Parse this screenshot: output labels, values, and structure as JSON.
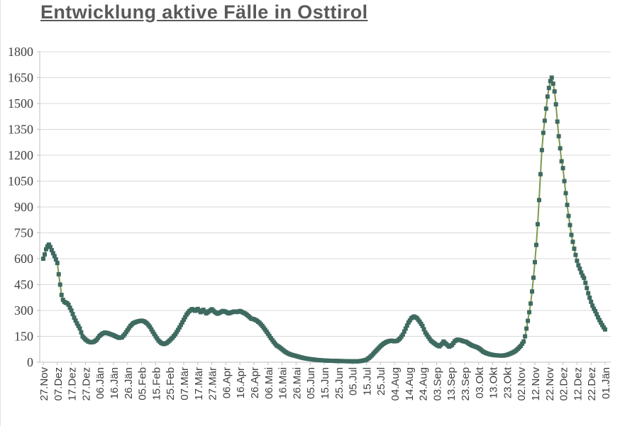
{
  "page": {
    "title": "Entwicklung aktive Fälle in Osttirol"
  },
  "chart_data": {
    "type": "line",
    "title": "Entwicklung aktive Fälle in Osttirol",
    "legend": "none",
    "grid": "horizontal",
    "marker": "square",
    "ylim": [
      0,
      1800
    ],
    "y_ticks": [
      0,
      150,
      300,
      450,
      600,
      750,
      900,
      1050,
      1200,
      1350,
      1500,
      1650,
      1800
    ],
    "x_tick_interval_days": 10,
    "x_range_days": [
      0,
      400
    ],
    "x_tick_labels": [
      "27.Nov",
      "07.Dez",
      "17.Dez",
      "27.Dez",
      "06.Jän",
      "16.Jän",
      "26.Jän",
      "05.Feb",
      "15.Feb",
      "25.Feb",
      "07.Mär",
      "17.Mär",
      "27.Mär",
      "06.Apr",
      "16.Apr",
      "26.Apr",
      "06.Mai",
      "16.Mai",
      "26.Mai",
      "05.Jun",
      "15.Jun",
      "25.Jun",
      "05.Jul",
      "15.Jul",
      "25.Jul",
      "04.Aug",
      "14.Aug",
      "24.Aug",
      "03.Sep",
      "13.Sep",
      "23.Sep",
      "03.Okt",
      "13.Okt",
      "23.Okt",
      "02.Nov",
      "12.Nov",
      "22.Nov",
      "02.Dez",
      "12.Dez",
      "22.Dez",
      "01.Jän"
    ],
    "colors": {
      "line": "#7C9A4E",
      "marker": "#3E6A60",
      "gridline": "#D9D9D9",
      "axis": "#BFBFBF",
      "title": "#595959",
      "tick_text": "#3F3F3F"
    },
    "series": [
      {
        "name": "aktive Fälle",
        "sampling": "anchor points [day,value] estimated from plot; daily points interpolated",
        "points_day_value": [
          [
            0,
            600
          ],
          [
            1,
            625
          ],
          [
            2,
            655
          ],
          [
            3,
            672
          ],
          [
            4,
            682
          ],
          [
            5,
            668
          ],
          [
            6,
            650
          ],
          [
            7,
            632
          ],
          [
            8,
            615
          ],
          [
            9,
            596
          ],
          [
            10,
            575
          ],
          [
            11,
            510
          ],
          [
            12,
            450
          ],
          [
            13,
            390
          ],
          [
            14,
            362
          ],
          [
            15,
            350
          ],
          [
            16,
            345
          ],
          [
            17,
            342
          ],
          [
            18,
            333
          ],
          [
            19,
            316
          ],
          [
            20,
            300
          ],
          [
            22,
            258
          ],
          [
            24,
            225
          ],
          [
            26,
            196
          ],
          [
            28,
            150
          ],
          [
            30,
            132
          ],
          [
            32,
            120
          ],
          [
            34,
            115
          ],
          [
            36,
            118
          ],
          [
            38,
            130
          ],
          [
            40,
            152
          ],
          [
            42,
            165
          ],
          [
            44,
            172
          ],
          [
            46,
            168
          ],
          [
            48,
            162
          ],
          [
            50,
            156
          ],
          [
            52,
            148
          ],
          [
            54,
            141
          ],
          [
            56,
            144
          ],
          [
            58,
            162
          ],
          [
            60,
            186
          ],
          [
            62,
            210
          ],
          [
            64,
            226
          ],
          [
            66,
            233
          ],
          [
            68,
            238
          ],
          [
            70,
            241
          ],
          [
            72,
            236
          ],
          [
            74,
            224
          ],
          [
            76,
            204
          ],
          [
            78,
            176
          ],
          [
            80,
            150
          ],
          [
            82,
            126
          ],
          [
            84,
            111
          ],
          [
            86,
            105
          ],
          [
            88,
            112
          ],
          [
            90,
            126
          ],
          [
            92,
            142
          ],
          [
            94,
            162
          ],
          [
            96,
            188
          ],
          [
            98,
            216
          ],
          [
            100,
            246
          ],
          [
            102,
            276
          ],
          [
            104,
            296
          ],
          [
            106,
            308
          ],
          [
            108,
            298
          ],
          [
            110,
            309
          ],
          [
            112,
            290
          ],
          [
            114,
            304
          ],
          [
            116,
            283
          ],
          [
            118,
            295
          ],
          [
            120,
            307
          ],
          [
            122,
            292
          ],
          [
            124,
            281
          ],
          [
            126,
            289
          ],
          [
            128,
            297
          ],
          [
            130,
            292
          ],
          [
            132,
            283
          ],
          [
            134,
            289
          ],
          [
            136,
            294
          ],
          [
            138,
            291
          ],
          [
            140,
            297
          ],
          [
            142,
            289
          ],
          [
            144,
            281
          ],
          [
            146,
            268
          ],
          [
            148,
            253
          ],
          [
            150,
            249
          ],
          [
            152,
            241
          ],
          [
            154,
            228
          ],
          [
            156,
            210
          ],
          [
            158,
            188
          ],
          [
            160,
            165
          ],
          [
            162,
            140
          ],
          [
            164,
            118
          ],
          [
            166,
            98
          ],
          [
            168,
            88
          ],
          [
            170,
            75
          ],
          [
            172,
            62
          ],
          [
            174,
            52
          ],
          [
            176,
            45
          ],
          [
            178,
            40
          ],
          [
            180,
            36
          ],
          [
            183,
            29
          ],
          [
            186,
            23
          ],
          [
            189,
            19
          ],
          [
            192,
            16
          ],
          [
            195,
            13
          ],
          [
            198,
            11
          ],
          [
            202,
            9
          ],
          [
            206,
            8
          ],
          [
            210,
            7
          ],
          [
            215,
            6
          ],
          [
            220,
            5
          ],
          [
            224,
            5
          ],
          [
            227,
            8
          ],
          [
            230,
            14
          ],
          [
            232,
            25
          ],
          [
            234,
            40
          ],
          [
            236,
            58
          ],
          [
            238,
            75
          ],
          [
            240,
            92
          ],
          [
            242,
            106
          ],
          [
            244,
            116
          ],
          [
            246,
            122
          ],
          [
            248,
            125
          ],
          [
            250,
            121
          ],
          [
            252,
            124
          ],
          [
            254,
            138
          ],
          [
            256,
            160
          ],
          [
            258,
            195
          ],
          [
            260,
            230
          ],
          [
            262,
            255
          ],
          [
            264,
            265
          ],
          [
            266,
            256
          ],
          [
            268,
            235
          ],
          [
            270,
            210
          ],
          [
            272,
            172
          ],
          [
            274,
            148
          ],
          [
            276,
            125
          ],
          [
            278,
            112
          ],
          [
            280,
            100
          ],
          [
            282,
            92
          ],
          [
            284,
            108
          ],
          [
            285,
            120
          ],
          [
            287,
            105
          ],
          [
            289,
            90
          ],
          [
            291,
            100
          ],
          [
            293,
            122
          ],
          [
            295,
            131
          ],
          [
            297,
            128
          ],
          [
            299,
            122
          ],
          [
            301,
            118
          ],
          [
            303,
            108
          ],
          [
            305,
            98
          ],
          [
            307,
            92
          ],
          [
            309,
            86
          ],
          [
            311,
            76
          ],
          [
            313,
            62
          ],
          [
            315,
            54
          ],
          [
            317,
            48
          ],
          [
            319,
            44
          ],
          [
            321,
            41
          ],
          [
            324,
            39
          ],
          [
            327,
            38
          ],
          [
            330,
            42
          ],
          [
            332,
            48
          ],
          [
            334,
            55
          ],
          [
            336,
            64
          ],
          [
            338,
            78
          ],
          [
            340,
            95
          ],
          [
            342,
            120
          ],
          [
            343,
            150
          ],
          [
            344,
            195
          ],
          [
            345,
            240
          ],
          [
            346,
            290
          ],
          [
            347,
            340
          ],
          [
            348,
            410
          ],
          [
            349,
            490
          ],
          [
            350,
            580
          ],
          [
            351,
            680
          ],
          [
            352,
            800
          ],
          [
            353,
            940
          ],
          [
            354,
            1090
          ],
          [
            355,
            1230
          ],
          [
            356,
            1330
          ],
          [
            357,
            1400
          ],
          [
            358,
            1470
          ],
          [
            359,
            1540
          ],
          [
            360,
            1590
          ],
          [
            361,
            1630
          ],
          [
            362,
            1650
          ],
          [
            363,
            1615
          ],
          [
            364,
            1570
          ],
          [
            365,
            1495
          ],
          [
            366,
            1395
          ],
          [
            367,
            1310
          ],
          [
            368,
            1240
          ],
          [
            369,
            1165
          ],
          [
            370,
            1125
          ],
          [
            371,
            1050
          ],
          [
            372,
            980
          ],
          [
            373,
            912
          ],
          [
            374,
            848
          ],
          [
            375,
            795
          ],
          [
            376,
            738
          ],
          [
            377,
            698
          ],
          [
            378,
            658
          ],
          [
            379,
            622
          ],
          [
            380,
            588
          ],
          [
            381,
            562
          ],
          [
            382,
            542
          ],
          [
            383,
            520
          ],
          [
            384,
            502
          ],
          [
            385,
            488
          ],
          [
            386,
            460
          ],
          [
            387,
            430
          ],
          [
            388,
            400
          ],
          [
            389,
            374
          ],
          [
            390,
            350
          ],
          [
            391,
            328
          ],
          [
            392,
            310
          ],
          [
            393,
            296
          ],
          [
            394,
            278
          ],
          [
            395,
            260
          ],
          [
            396,
            244
          ],
          [
            397,
            229
          ],
          [
            398,
            215
          ],
          [
            399,
            202
          ],
          [
            400,
            190
          ]
        ]
      }
    ]
  }
}
